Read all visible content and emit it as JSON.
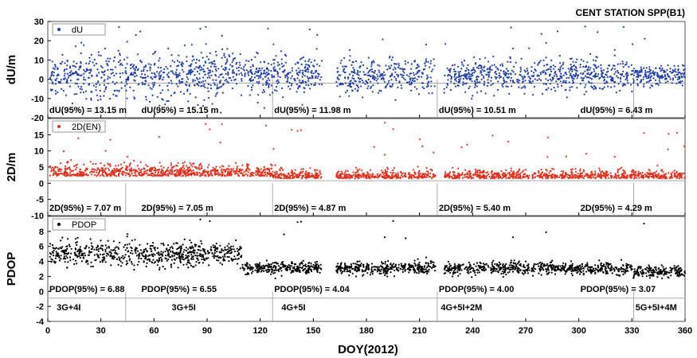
{
  "figure": {
    "title": "CENT STATION SPP(B1)",
    "xlabel": "DOY(2012)",
    "x_ticks": [
      "0",
      "30",
      "60",
      "90",
      "120",
      "150",
      "180",
      "210",
      "240",
      "270",
      "300",
      "330",
      "360"
    ],
    "colors": {
      "dU": "#1f3fa8",
      "2D": "#e0321e",
      "PDOP": "#000000",
      "frame": "#555555",
      "divider": "#aaaaaa"
    }
  },
  "chart_data": [
    {
      "type": "scatter",
      "ylabel": "dU/m",
      "ylim": [
        -20,
        30
      ],
      "y_ticks": [
        "-20",
        "-10",
        "0",
        "10",
        "20",
        "30"
      ],
      "xlim": [
        0,
        360
      ],
      "series": [
        {
          "name": "dU",
          "x_range": [
            1,
            360
          ],
          "gaps": [
            [
              155,
              163
            ],
            [
              219,
              224
            ]
          ],
          "typical_range": [
            -10,
            12
          ],
          "outliers_max": 28
        }
      ],
      "segment_boundaries": [
        44,
        127,
        220,
        331
      ],
      "annotations": [
        {
          "x": 0,
          "text": "dU(95%) = 13.15 m"
        },
        {
          "x": 52,
          "text": "dU(95%) = 15.15 m"
        },
        {
          "x": 127,
          "text": "dU(95%) = 11.98 m"
        },
        {
          "x": 220,
          "text": "dU(95%) = 10.51 m"
        },
        {
          "x": 300,
          "text": "dU(95%) = 6.43 m"
        }
      ]
    },
    {
      "type": "scatter",
      "ylabel": "2D/m",
      "ylim": [
        -10,
        20
      ],
      "y_ticks": [
        "-10",
        "-5",
        "0",
        "5",
        "10",
        "15"
      ],
      "xlim": [
        0,
        360
      ],
      "series": [
        {
          "name": "2D(EN)",
          "x_range": [
            1,
            360
          ],
          "gaps": [
            [
              155,
              163
            ],
            [
              219,
              224
            ]
          ],
          "typical_range": [
            0.5,
            5
          ],
          "outliers_max": 19
        }
      ],
      "segment_boundaries": [
        44,
        127,
        220,
        331
      ],
      "annotations": [
        {
          "x": 0,
          "text": "2D(95%) = 7.07 m"
        },
        {
          "x": 52,
          "text": "2D(95%) = 7.05 m"
        },
        {
          "x": 127,
          "text": "2D(95%) = 4.87 m"
        },
        {
          "x": 220,
          "text": "2D(95%) = 5.40 m"
        },
        {
          "x": 300,
          "text": "2D(95%) = 4.29 m"
        }
      ]
    },
    {
      "type": "scatter",
      "ylabel": "PDOP",
      "ylim": [
        -4,
        10
      ],
      "y_ticks": [
        "-4",
        "-2",
        "0",
        "2",
        "4",
        "6",
        "8"
      ],
      "xlim": [
        0,
        360
      ],
      "series": [
        {
          "name": "PDOP",
          "x_range": [
            1,
            360
          ],
          "gaps": [
            [
              155,
              163
            ],
            [
              219,
              224
            ]
          ],
          "typical_range": [
            2.2,
            7
          ],
          "outliers_max": 10
        }
      ],
      "segment_boundaries": [
        44,
        127,
        220,
        331
      ],
      "annotations": [
        {
          "x": 0,
          "text": "PDOP(95%) = 6.88"
        },
        {
          "x": 52,
          "text": "PDOP(95%) = 6.55"
        },
        {
          "x": 127,
          "text": "PDOP(95%) = 4.04"
        },
        {
          "x": 220,
          "text": "PDOP(95%) = 4.00"
        },
        {
          "x": 300,
          "text": "PDOP(95%) = 3.07"
        }
      ],
      "constellations": [
        {
          "x": 5,
          "text": "3G+4I"
        },
        {
          "x": 70,
          "text": "3G+5I"
        },
        {
          "x": 132,
          "text": "4G+5I"
        },
        {
          "x": 222,
          "text": "4G+5I+2M"
        },
        {
          "x": 332,
          "text": "5G+5I+4M"
        }
      ]
    }
  ]
}
